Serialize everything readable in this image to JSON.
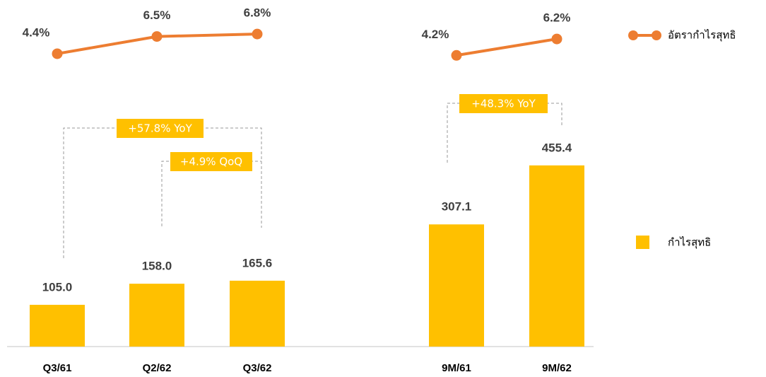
{
  "chart_data": [
    {
      "type": "bar",
      "categories": [
        "Q3/61",
        "Q2/62",
        "Q3/62"
      ],
      "series": [
        {
          "name": "กำไรสุทธิ",
          "color": "#ffc000",
          "values": [
            105.0,
            158.0,
            165.6
          ],
          "value_labels": [
            "105.0",
            "158.0",
            "165.6"
          ]
        },
        {
          "name": "อัตรากำไรสุทธิ",
          "type": "line",
          "axis": "y2",
          "color": "#ed7d31",
          "values": [
            4.4,
            6.5,
            6.8
          ],
          "value_labels": [
            "4.4%",
            "6.5%",
            "6.8%"
          ]
        }
      ],
      "annotations": [
        "+57.8% YoY",
        "+4.9% QoQ"
      ],
      "ylim": [
        0,
        800
      ],
      "y2lim": [
        0,
        10
      ]
    },
    {
      "type": "bar",
      "categories": [
        "9M/61",
        "9M/62"
      ],
      "series": [
        {
          "color": "#ffc000",
          "values": [
            307.1,
            455.4
          ],
          "value_labels": [
            "307.1",
            "455.4"
          ]
        },
        {
          "type": "line",
          "axis": "y2",
          "color": "#ed7d31",
          "values": [
            4.2,
            6.2
          ],
          "value_labels": [
            "4.2%",
            "6.2%"
          ]
        }
      ],
      "annotations": [
        "+48.3% YoY"
      ],
      "ylim": [
        0,
        800
      ],
      "y2lim": [
        0,
        10
      ]
    }
  ]
}
